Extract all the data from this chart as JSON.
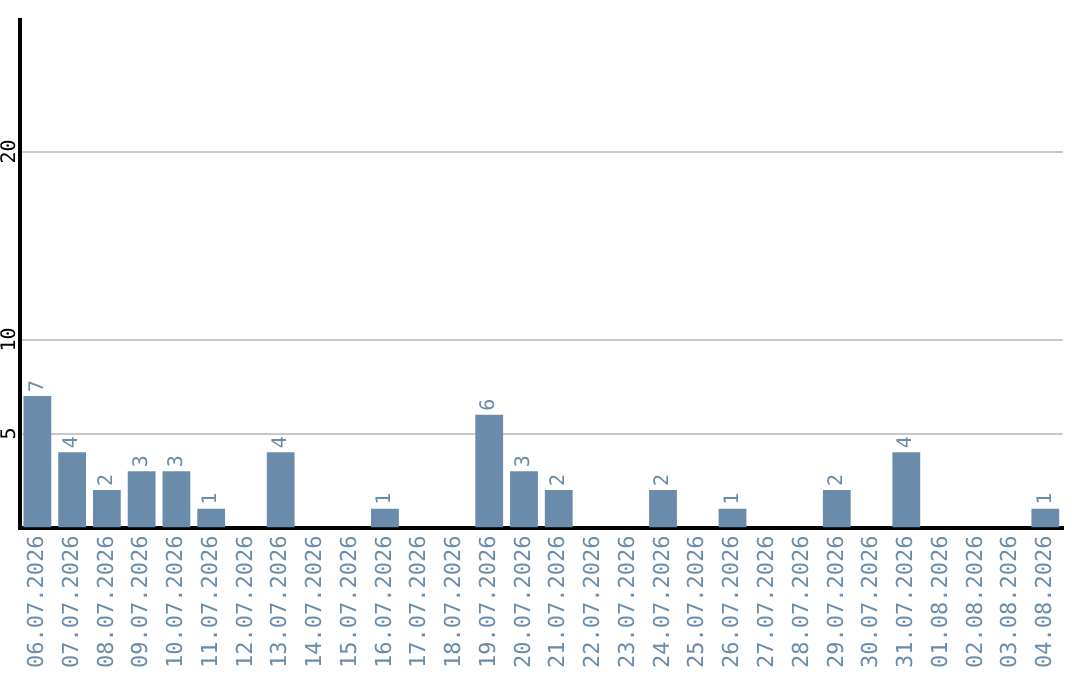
{
  "chart_data": {
    "type": "bar",
    "categories": [
      "06.07.2026",
      "07.07.2026",
      "08.07.2026",
      "09.07.2026",
      "10.07.2026",
      "11.07.2026",
      "12.07.2026",
      "13.07.2026",
      "14.07.2026",
      "15.07.2026",
      "16.07.2026",
      "17.07.2026",
      "18.07.2026",
      "19.07.2026",
      "20.07.2026",
      "21.07.2026",
      "22.07.2026",
      "23.07.2026",
      "24.07.2026",
      "25.07.2026",
      "26.07.2026",
      "27.07.2026",
      "28.07.2026",
      "29.07.2026",
      "30.07.2026",
      "31.07.2026",
      "01.08.2026",
      "02.08.2026",
      "03.08.2026",
      "04.08.2026"
    ],
    "values": [
      7,
      4,
      2,
      3,
      3,
      1,
      0,
      4,
      0,
      0,
      1,
      0,
      0,
      6,
      3,
      2,
      0,
      0,
      2,
      0,
      1,
      0,
      0,
      2,
      0,
      4,
      0,
      0,
      0,
      1
    ],
    "value_labels": [
      "7",
      "4",
      "2",
      "3",
      "3",
      "1",
      null,
      "4",
      null,
      null,
      "1",
      null,
      null,
      "6",
      "3",
      "2",
      null,
      null,
      "2",
      null,
      "1",
      null,
      null,
      "2",
      null,
      "4",
      null,
      null,
      null,
      "1"
    ],
    "color": "#6a8caa",
    "ylim": [
      0,
      27
    ],
    "yticks": [
      5,
      10,
      20
    ],
    "grid": "y",
    "legend": false
  }
}
